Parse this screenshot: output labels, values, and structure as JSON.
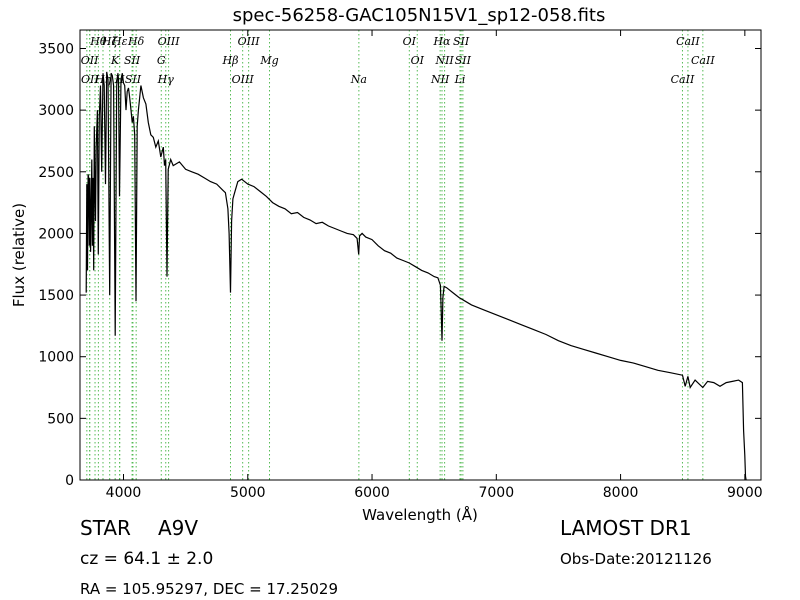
{
  "chart_data": {
    "type": "line",
    "title": "spec-56258-GAC105N15V1_sp12-058.fits",
    "xlabel": "Wavelength (Å)",
    "ylabel": "Flux (relative)",
    "xlim": [
      3650,
      9130
    ],
    "ylim": [
      0,
      3650
    ],
    "xticks": [
      4000,
      5000,
      6000,
      7000,
      8000,
      9000
    ],
    "yticks": [
      0,
      500,
      1000,
      1500,
      2000,
      2500,
      3000,
      3500
    ],
    "grid": false,
    "line_color": "#000000",
    "marker_color": "#55bb55",
    "series": [
      {
        "x": [
          3700,
          3705,
          3710,
          3715,
          3720,
          3725,
          3730,
          3735,
          3740,
          3745,
          3750,
          3755,
          3760,
          3765,
          3770,
          3775,
          3780,
          3790,
          3797,
          3805,
          3815,
          3825,
          3835,
          3845,
          3855,
          3865,
          3875,
          3889,
          3900,
          3910,
          3920,
          3933,
          3945,
          3955,
          3960,
          3968,
          3980,
          3990,
          4000,
          4010,
          4020,
          4030,
          4040,
          4050,
          4060,
          4070,
          4080,
          4090,
          4101,
          4110,
          4120,
          4140,
          4160,
          4180,
          4200,
          4220,
          4240,
          4260,
          4280,
          4300,
          4320,
          4330,
          4340,
          4350,
          4360,
          4380,
          4400,
          4450,
          4500,
          4550,
          4600,
          4650,
          4700,
          4750,
          4800,
          4820,
          4840,
          4850,
          4861,
          4870,
          4880,
          4900,
          4920,
          4950,
          5000,
          5050,
          5100,
          5150,
          5200,
          5250,
          5300,
          5350,
          5400,
          5450,
          5500,
          5550,
          5600,
          5650,
          5700,
          5750,
          5800,
          5850,
          5880,
          5893,
          5900,
          5920,
          5950,
          6000,
          6050,
          6100,
          6150,
          6200,
          6250,
          6300,
          6350,
          6400,
          6450,
          6500,
          6530,
          6550,
          6556,
          6563,
          6570,
          6580,
          6600,
          6650,
          6700,
          6750,
          6800,
          6900,
          7000,
          7100,
          7200,
          7300,
          7400,
          7500,
          7600,
          7700,
          7800,
          7900,
          8000,
          8100,
          8200,
          8300,
          8400,
          8498,
          8520,
          8542,
          8560,
          8600,
          8662,
          8700,
          8750,
          8800,
          8850,
          8900,
          8950,
          8980,
          8990,
          9000,
          9005,
          9010
        ],
        "y": [
          1520,
          2400,
          1700,
          2480,
          2450,
          1900,
          2450,
          1850,
          2200,
          2600,
          1900,
          2450,
          1700,
          2870,
          2400,
          2100,
          2700,
          3000,
          1830,
          2950,
          3200,
          2500,
          3300,
          3200,
          2400,
          3310,
          3250,
          1500,
          3300,
          3280,
          3200,
          1170,
          3200,
          3300,
          3250,
          2300,
          3250,
          3300,
          3220,
          3200,
          3000,
          3150,
          3180,
          3100,
          3000,
          2900,
          2950,
          2800,
          1450,
          2870,
          3000,
          3200,
          3100,
          3050,
          2900,
          2800,
          2780,
          2700,
          2750,
          2620,
          2700,
          2550,
          2600,
          1650,
          2520,
          2600,
          2550,
          2580,
          2520,
          2500,
          2480,
          2450,
          2420,
          2400,
          2350,
          2330,
          2200,
          2000,
          1520,
          2100,
          2280,
          2350,
          2420,
          2440,
          2400,
          2380,
          2340,
          2300,
          2250,
          2220,
          2200,
          2160,
          2170,
          2130,
          2110,
          2080,
          2090,
          2060,
          2040,
          2020,
          2000,
          1990,
          1960,
          1830,
          1980,
          2000,
          1970,
          1950,
          1900,
          1860,
          1840,
          1800,
          1780,
          1760,
          1730,
          1700,
          1680,
          1650,
          1640,
          1580,
          1400,
          1130,
          1480,
          1570,
          1560,
          1520,
          1480,
          1450,
          1420,
          1380,
          1340,
          1300,
          1260,
          1220,
          1180,
          1130,
          1090,
          1060,
          1030,
          1000,
          970,
          950,
          920,
          890,
          870,
          850,
          760,
          840,
          750,
          810,
          750,
          800,
          790,
          760,
          790,
          800,
          810,
          790,
          400,
          200,
          30,
          0
        ]
      }
    ],
    "line_markers": [
      {
        "wl": 3705,
        "label": ""
      },
      {
        "wl": 3727,
        "label": "OII"
      },
      {
        "wl": 3729,
        "label": "OII"
      },
      {
        "wl": 3771,
        "label": ""
      },
      {
        "wl": 3798,
        "label": "Hθ"
      },
      {
        "wl": 3835,
        "label": "Hη"
      },
      {
        "wl": 3889,
        "label": "Hζ"
      },
      {
        "wl": 3933,
        "label": "K"
      },
      {
        "wl": 3968,
        "label": "H"
      },
      {
        "wl": 3970,
        "label": "Hε"
      },
      {
        "wl": 4069,
        "label": "SII"
      },
      {
        "wl": 4076,
        "label": "SII"
      },
      {
        "wl": 4102,
        "label": "Hδ"
      },
      {
        "wl": 4304,
        "label": "G"
      },
      {
        "wl": 4340,
        "label": "Hγ"
      },
      {
        "wl": 4363,
        "label": "OIII"
      },
      {
        "wl": 4861,
        "label": "Hβ"
      },
      {
        "wl": 4959,
        "label": "OIII"
      },
      {
        "wl": 5007,
        "label": "OIII"
      },
      {
        "wl": 5175,
        "label": "Mg"
      },
      {
        "wl": 5894,
        "label": "Na"
      },
      {
        "wl": 6300,
        "label": "OI"
      },
      {
        "wl": 6364,
        "label": "OI"
      },
      {
        "wl": 6548,
        "label": "NII"
      },
      {
        "wl": 6563,
        "label": "Hα"
      },
      {
        "wl": 6584,
        "label": "NII"
      },
      {
        "wl": 6708,
        "label": "Li"
      },
      {
        "wl": 6717,
        "label": "SII"
      },
      {
        "wl": 6731,
        "label": "SII"
      },
      {
        "wl": 8498,
        "label": "CaII"
      },
      {
        "wl": 8542,
        "label": "CaII"
      },
      {
        "wl": 8662,
        "label": "CaII"
      }
    ]
  },
  "footer": {
    "class_label": "STAR",
    "subclass": "A9V",
    "survey": "LAMOST DR1",
    "cz": "cz = 64.1 ± 2.0",
    "obs_date": "Obs-Date:20121126",
    "coords": "RA = 105.95297, DEC = 17.25029"
  }
}
